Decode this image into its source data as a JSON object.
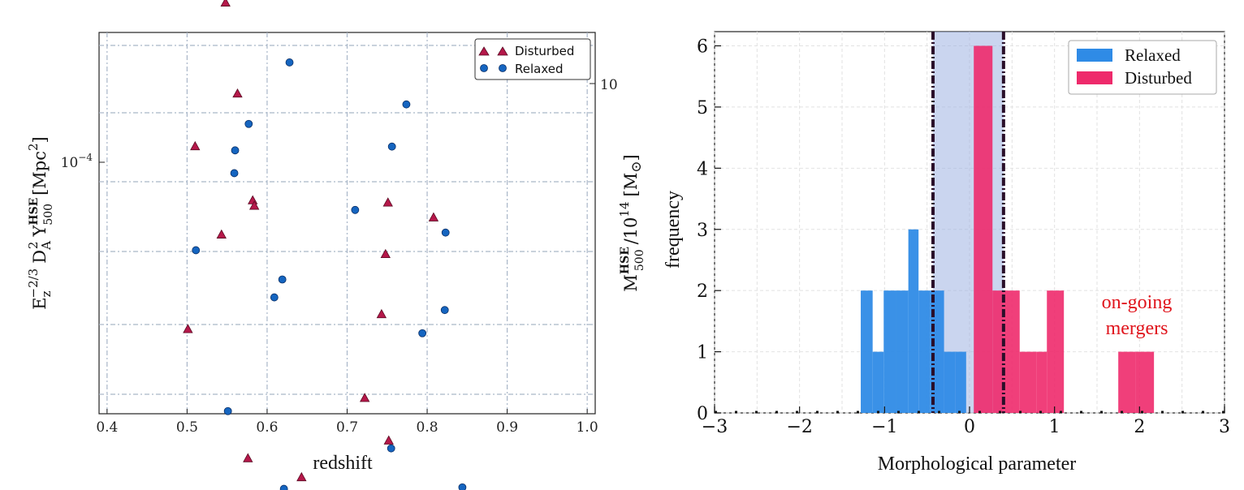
{
  "chart_data": [
    {
      "type": "scatter",
      "xlabel": "redshift",
      "ylabel": "E_z^{-2/3} D_A^2 Y_500^HSE [Mpc²]",
      "ylabel_parts": {
        "E": "E",
        "z": "z",
        "exp": "−2/3",
        "D": "D",
        "A": "A",
        "two": "2",
        "Y": "Y",
        "sup": "HSE",
        "sub": "500",
        "unit": "[Mpc",
        "unit2": "2",
        "close": "]"
      },
      "y2label": "M_500^HSE / 10^14 [M☉]",
      "y2label_parts": {
        "M": "M",
        "sup": "HSE",
        "sub": "500",
        "rest": "/10",
        "exp": "14",
        "unit": "[M",
        "sun": "⊙",
        "close": "]"
      },
      "xlim": [
        0.39,
        1.01
      ],
      "x_ticks": [
        "0.4",
        "0.5",
        "0.6",
        "0.7",
        "0.8",
        "0.9",
        "1.0"
      ],
      "y_scale": "log",
      "y_tick_left": {
        "base": "10",
        "exp": "−4"
      },
      "y_tick_right": "10",
      "grid": true,
      "legend_position": "top-right",
      "series": [
        {
          "name": "Disturbed",
          "marker": "triangle",
          "color": "#b5184a",
          "points": [
            [
              0.548,
              3.17
            ],
            [
              0.563,
              1.64
            ],
            [
              0.51,
              1.12
            ],
            [
              0.582,
              0.757
            ],
            [
              0.584,
              0.728
            ],
            [
              0.543,
              0.591
            ],
            [
              0.501,
              0.298
            ],
            [
              0.576,
              0.117
            ],
            [
              0.643,
              0.102
            ],
            [
              0.751,
              0.745
            ],
            [
              0.808,
              0.669
            ],
            [
              0.748,
              0.513
            ],
            [
              0.743,
              0.332
            ],
            [
              0.722,
              0.181
            ],
            [
              0.752,
              0.133
            ]
          ]
        },
        {
          "name": "Relaxed",
          "marker": "circle",
          "color": "#1565c0",
          "points": [
            [
              0.628,
              2.06
            ],
            [
              0.577,
              1.32
            ],
            [
              0.56,
              1.09
            ],
            [
              0.559,
              0.924
            ],
            [
              0.511,
              0.529
            ],
            [
              0.619,
              0.428
            ],
            [
              0.609,
              0.376
            ],
            [
              0.551,
              0.165
            ],
            [
              0.621,
              0.094
            ],
            [
              0.774,
              1.52
            ],
            [
              0.756,
              1.12
            ],
            [
              0.71,
              0.708
            ],
            [
              0.823,
              0.601
            ],
            [
              0.822,
              0.343
            ],
            [
              0.794,
              0.29
            ],
            [
              0.755,
              0.126
            ],
            [
              0.844,
              0.095
            ]
          ]
        }
      ]
    },
    {
      "type": "bar",
      "subtype": "histogram",
      "xlabel": "Morphological parameter",
      "ylabel": "frequency",
      "xlim": [
        -3,
        3
      ],
      "ylim": [
        0,
        6.2
      ],
      "x_ticks": [
        "−3",
        "−2",
        "−1",
        "0",
        "1",
        "2",
        "3"
      ],
      "y_ticks": [
        "0",
        "1",
        "2",
        "3",
        "4",
        "5",
        "6"
      ],
      "legend_position": "top-right",
      "series": [
        {
          "name": "Relaxed",
          "color": "#2f8be6",
          "bins": [
            [
              -1.28,
              -1.14,
              2
            ],
            [
              -1.14,
              -1.01,
              1
            ],
            [
              -1.01,
              -0.86,
              2
            ],
            [
              -0.86,
              -0.72,
              2
            ],
            [
              -0.72,
              -0.6,
              3
            ],
            [
              -0.6,
              -0.46,
              2
            ],
            [
              -0.46,
              -0.3,
              2
            ],
            [
              -0.3,
              -0.17,
              1
            ],
            [
              -0.17,
              -0.04,
              1
            ]
          ]
        },
        {
          "name": "Disturbed",
          "color": "#ee2a6b",
          "bins": [
            [
              0.05,
              0.27,
              6
            ],
            [
              0.27,
              0.41,
              2
            ],
            [
              0.41,
              0.59,
              2
            ],
            [
              0.59,
              0.79,
              1
            ],
            [
              0.79,
              0.91,
              1
            ],
            [
              0.91,
              1.11,
              2
            ],
            [
              1.75,
              1.95,
              1
            ],
            [
              1.95,
              2.17,
              1
            ]
          ]
        }
      ],
      "shaded_band": [
        -0.43,
        0.4
      ],
      "vlines": [
        -0.43,
        0.4
      ],
      "annotation": [
        "on-going",
        "mergers"
      ]
    }
  ]
}
